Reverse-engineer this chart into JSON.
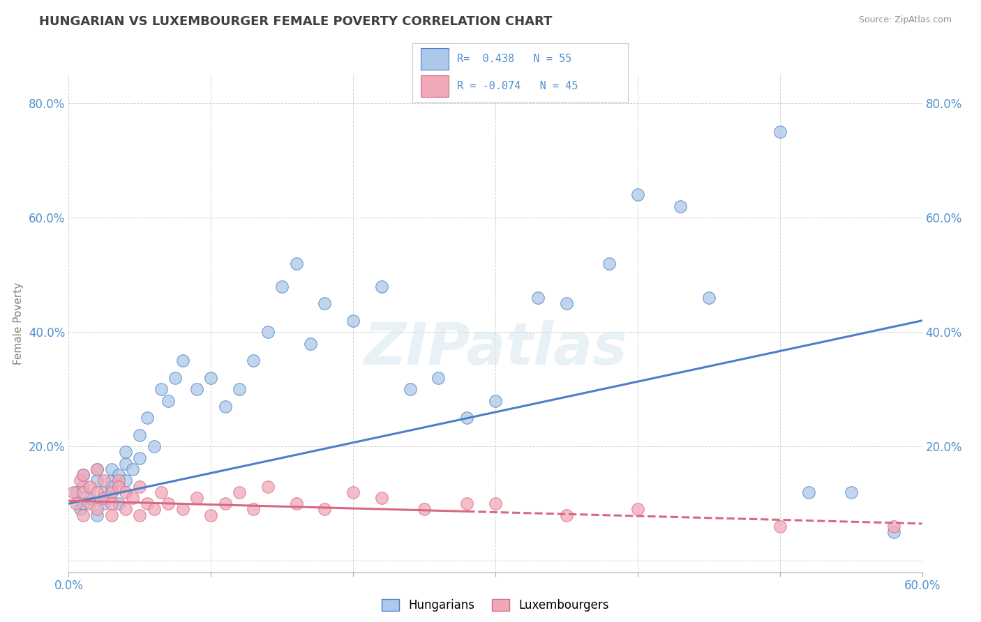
{
  "title": "HUNGARIAN VS LUXEMBOURGER FEMALE POVERTY CORRELATION CHART",
  "source": "Source: ZipAtlas.com",
  "ylabel": "Female Poverty",
  "xlim": [
    0.0,
    0.6
  ],
  "ylim": [
    -0.02,
    0.85
  ],
  "xticks": [
    0.0,
    0.1,
    0.2,
    0.3,
    0.4,
    0.5,
    0.6
  ],
  "xticklabels": [
    "0.0%",
    "",
    "",
    "",
    "",
    "",
    "60.0%"
  ],
  "yticks": [
    0.0,
    0.2,
    0.4,
    0.6,
    0.8
  ],
  "yticklabels": [
    "",
    "20.0%",
    "40.0%",
    "60.0%",
    "80.0%"
  ],
  "hungarian_R": 0.438,
  "hungarian_N": 55,
  "luxembourger_R": -0.074,
  "luxembourger_N": 45,
  "blue_color": "#adc8e8",
  "pink_color": "#f0a8b8",
  "blue_line_color": "#4a80c8",
  "pink_line_color": "#d86880",
  "background_color": "#ffffff",
  "grid_color": "#c8c8c8",
  "title_color": "#404040",
  "axis_label_color": "#808080",
  "tick_label_color": "#5090d0",
  "legend_R_color": "#5090d0",
  "watermark": "ZIPatlas",
  "hungarian_x": [
    0.005,
    0.008,
    0.01,
    0.01,
    0.01,
    0.015,
    0.02,
    0.02,
    0.02,
    0.025,
    0.025,
    0.03,
    0.03,
    0.03,
    0.03,
    0.035,
    0.035,
    0.04,
    0.04,
    0.04,
    0.045,
    0.05,
    0.05,
    0.055,
    0.06,
    0.065,
    0.07,
    0.075,
    0.08,
    0.09,
    0.1,
    0.11,
    0.12,
    0.13,
    0.14,
    0.15,
    0.16,
    0.17,
    0.18,
    0.2,
    0.22,
    0.24,
    0.26,
    0.28,
    0.3,
    0.33,
    0.35,
    0.38,
    0.4,
    0.43,
    0.45,
    0.5,
    0.52,
    0.55,
    0.58
  ],
  "hungarian_y": [
    0.12,
    0.09,
    0.1,
    0.13,
    0.15,
    0.11,
    0.14,
    0.08,
    0.16,
    0.12,
    0.1,
    0.14,
    0.12,
    0.16,
    0.13,
    0.1,
    0.15,
    0.14,
    0.17,
    0.19,
    0.16,
    0.18,
    0.22,
    0.25,
    0.2,
    0.3,
    0.28,
    0.32,
    0.35,
    0.3,
    0.32,
    0.27,
    0.3,
    0.35,
    0.4,
    0.48,
    0.52,
    0.38,
    0.45,
    0.42,
    0.48,
    0.3,
    0.32,
    0.25,
    0.28,
    0.46,
    0.45,
    0.52,
    0.64,
    0.62,
    0.46,
    0.75,
    0.12,
    0.12,
    0.05
  ],
  "luxembourger_x": [
    0.003,
    0.005,
    0.008,
    0.01,
    0.01,
    0.01,
    0.015,
    0.015,
    0.02,
    0.02,
    0.02,
    0.025,
    0.025,
    0.03,
    0.03,
    0.03,
    0.035,
    0.035,
    0.04,
    0.04,
    0.045,
    0.05,
    0.05,
    0.055,
    0.06,
    0.065,
    0.07,
    0.08,
    0.09,
    0.1,
    0.11,
    0.12,
    0.13,
    0.14,
    0.16,
    0.18,
    0.2,
    0.22,
    0.25,
    0.28,
    0.3,
    0.35,
    0.4,
    0.5,
    0.58
  ],
  "luxembourger_y": [
    0.12,
    0.1,
    0.14,
    0.08,
    0.12,
    0.15,
    0.1,
    0.13,
    0.09,
    0.12,
    0.16,
    0.11,
    0.14,
    0.08,
    0.12,
    0.1,
    0.14,
    0.13,
    0.09,
    0.12,
    0.11,
    0.08,
    0.13,
    0.1,
    0.09,
    0.12,
    0.1,
    0.09,
    0.11,
    0.08,
    0.1,
    0.12,
    0.09,
    0.13,
    0.1,
    0.09,
    0.12,
    0.11,
    0.09,
    0.1,
    0.1,
    0.08,
    0.09,
    0.06,
    0.06
  ]
}
